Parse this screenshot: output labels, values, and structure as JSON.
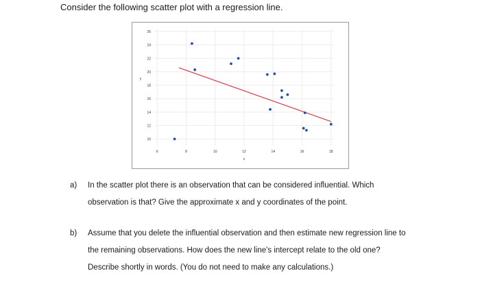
{
  "intro": "Consider the following scatter plot with a regression line.",
  "chart_data": {
    "type": "scatter",
    "title": "",
    "xlabel": "x",
    "ylabel": "y",
    "xlim": [
      5.8,
      18.2
    ],
    "ylim": [
      9,
      26.3
    ],
    "x_ticks": [
      "6",
      "8",
      "10",
      "12",
      "14",
      "16",
      "18"
    ],
    "y_ticks": [
      "26",
      "24",
      "22",
      "20",
      "18",
      "16",
      "14",
      "12",
      "10"
    ],
    "x_tick_values": [
      6,
      8,
      10,
      12,
      14,
      16,
      18
    ],
    "y_tick_values": [
      26,
      24,
      22,
      20,
      18,
      16,
      14,
      12,
      10
    ],
    "grid": true,
    "series": [
      {
        "points": [
          [
            7.2,
            10.0
          ],
          [
            8.4,
            24.2
          ],
          [
            8.6,
            20.3
          ],
          [
            11.1,
            21.2
          ],
          [
            11.6,
            22.0
          ],
          [
            13.6,
            19.6
          ],
          [
            14.1,
            19.7
          ],
          [
            13.8,
            14.4
          ],
          [
            14.6,
            17.2
          ],
          [
            15.0,
            16.6
          ],
          [
            14.6,
            16.2
          ],
          [
            16.2,
            13.9
          ],
          [
            16.1,
            11.6
          ],
          [
            16.3,
            11.3
          ],
          [
            18.0,
            12.2
          ]
        ]
      }
    ],
    "regression_line": {
      "x": [
        7.5,
        18.0
      ],
      "y": [
        20.6,
        12.6
      ]
    },
    "colors": {
      "points": "#1f4fb4",
      "line": "#d9475a",
      "grid": "#ececec"
    }
  },
  "questions": [
    {
      "label": "a)",
      "lines": [
        "In the scatter plot there is an observation that can be considered influential. Which",
        "observation is that? Give the approximate x and y coordinates of the point."
      ]
    },
    {
      "label": "b)",
      "lines": [
        "Assume that you delete the influential observation and then estimate new regression line to",
        "the remaining observations. How does the new line's intercept relate to the old one?",
        "Describe shortly in words. (You do not need to make any calculations.)"
      ]
    }
  ]
}
